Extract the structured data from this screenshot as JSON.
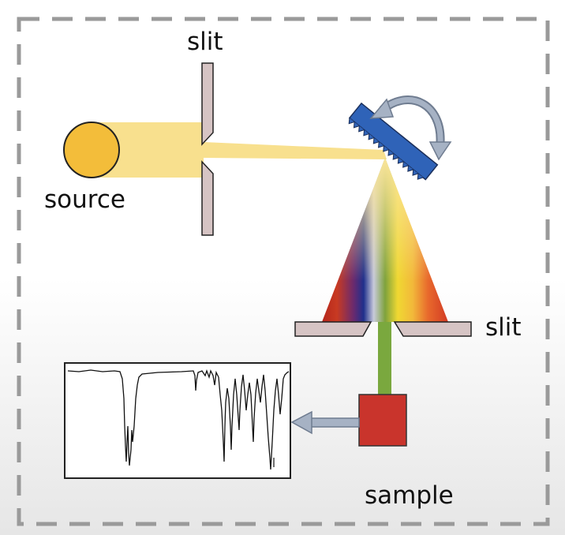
{
  "labels": {
    "slit_top": "slit",
    "source": "source",
    "slit_right": "slit",
    "sample": "sample"
  },
  "colors": {
    "source": "#f3bd3a",
    "beam": "#f8e08e",
    "slit": "#d6c4c4",
    "grating": "#2f63b8",
    "sample": "#c9342c",
    "green_beam": "#7aa83e",
    "frame": "#9a9a9a",
    "arrow": "#a6b2c4"
  }
}
